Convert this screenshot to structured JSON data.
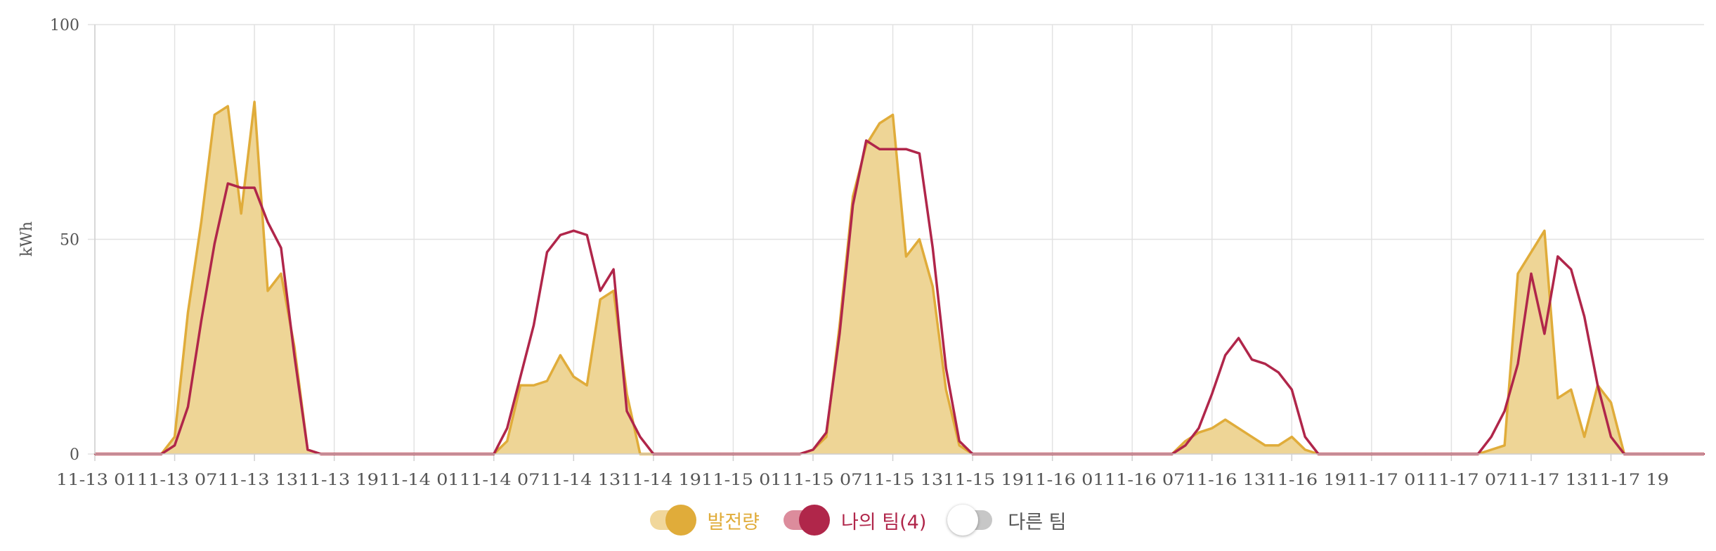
{
  "chart_data": {
    "type": "line",
    "ylabel": "kWh",
    "ylim": [
      0,
      100
    ],
    "yticks": [
      0,
      50,
      100
    ],
    "grid": true,
    "legend_position": "bottom-center",
    "x_labels": [
      "11-13 01",
      "11-13 07",
      "11-13 13",
      "11-13 19",
      "11-14 01",
      "11-14 07",
      "11-14 13",
      "11-14 19",
      "11-15 01",
      "11-15 07",
      "11-15 13",
      "11-15 19",
      "11-16 01",
      "11-16 07",
      "11-16 13",
      "11-16 19",
      "11-17 01",
      "11-17 07",
      "11-17 13",
      "11-17 19"
    ],
    "x_label_rows": [
      "11-13 0111-13 0711-13 1311-13 1911-14 0111-14 0711-14 1311-14 1911-15 0111-15 0711-15 1311-15 1911-16 0111-16 0711-16 1311-16 1911-17 0111-17 0711-17 1311-17 19"
    ],
    "series": [
      {
        "name": "발전량",
        "color": "#e0ac3a",
        "fill": "#eed596",
        "style": "area",
        "values": [
          0,
          0,
          0,
          0,
          0,
          0,
          4,
          33,
          54,
          79,
          81,
          56,
          82,
          38,
          42,
          25,
          1,
          0,
          0,
          0,
          0,
          0,
          0,
          0,
          0,
          0,
          0,
          0,
          0,
          0,
          0,
          3,
          16,
          16,
          17,
          23,
          18,
          16,
          36,
          38,
          14,
          0,
          0,
          0,
          0,
          0,
          0,
          0,
          0,
          0,
          0,
          0,
          0,
          0,
          1,
          4,
          30,
          60,
          72,
          77,
          79,
          46,
          50,
          39,
          15,
          2,
          0,
          0,
          0,
          0,
          0,
          0,
          0,
          0,
          0,
          0,
          0,
          0,
          0,
          0,
          0,
          0,
          3,
          5,
          6,
          8,
          6,
          4,
          2,
          2,
          4,
          1,
          0,
          0,
          0,
          0,
          0,
          0,
          0,
          0,
          0,
          0,
          0,
          0,
          0,
          1,
          2,
          42,
          47,
          52,
          13,
          15,
          4,
          16,
          12,
          0,
          0,
          0,
          0,
          0,
          0,
          0
        ]
      },
      {
        "name": "나의 팀(4)",
        "color": "#b0264a",
        "style": "line",
        "values": [
          0,
          0,
          0,
          0,
          0,
          0,
          2,
          11,
          31,
          49,
          63,
          62,
          62,
          54,
          48,
          23,
          1,
          0,
          0,
          0,
          0,
          0,
          0,
          0,
          0,
          0,
          0,
          0,
          0,
          0,
          0,
          6,
          18,
          30,
          47,
          51,
          52,
          51,
          38,
          43,
          10,
          4,
          0,
          0,
          0,
          0,
          0,
          0,
          0,
          0,
          0,
          0,
          0,
          0,
          1,
          5,
          28,
          58,
          73,
          71,
          71,
          71,
          70,
          48,
          20,
          3,
          0,
          0,
          0,
          0,
          0,
          0,
          0,
          0,
          0,
          0,
          0,
          0,
          0,
          0,
          0,
          0,
          2,
          6,
          14,
          23,
          27,
          22,
          21,
          19,
          15,
          4,
          0,
          0,
          0,
          0,
          0,
          0,
          0,
          0,
          0,
          0,
          0,
          0,
          0,
          4,
          10,
          21,
          42,
          28,
          46,
          43,
          32,
          16,
          4,
          0,
          0,
          0,
          0,
          0,
          0,
          0
        ]
      }
    ],
    "legend": [
      {
        "name": "발전량",
        "state": "on",
        "color": "#e0ac3a",
        "track_color": "#f1d79b"
      },
      {
        "name": "나의 팀(4)",
        "state": "on",
        "color": "#b0264a",
        "track_color": "#dc8c9c"
      },
      {
        "name": "다른 팀",
        "state": "off",
        "color": "#ffffff",
        "track_color": "#c7c7c7"
      }
    ]
  }
}
